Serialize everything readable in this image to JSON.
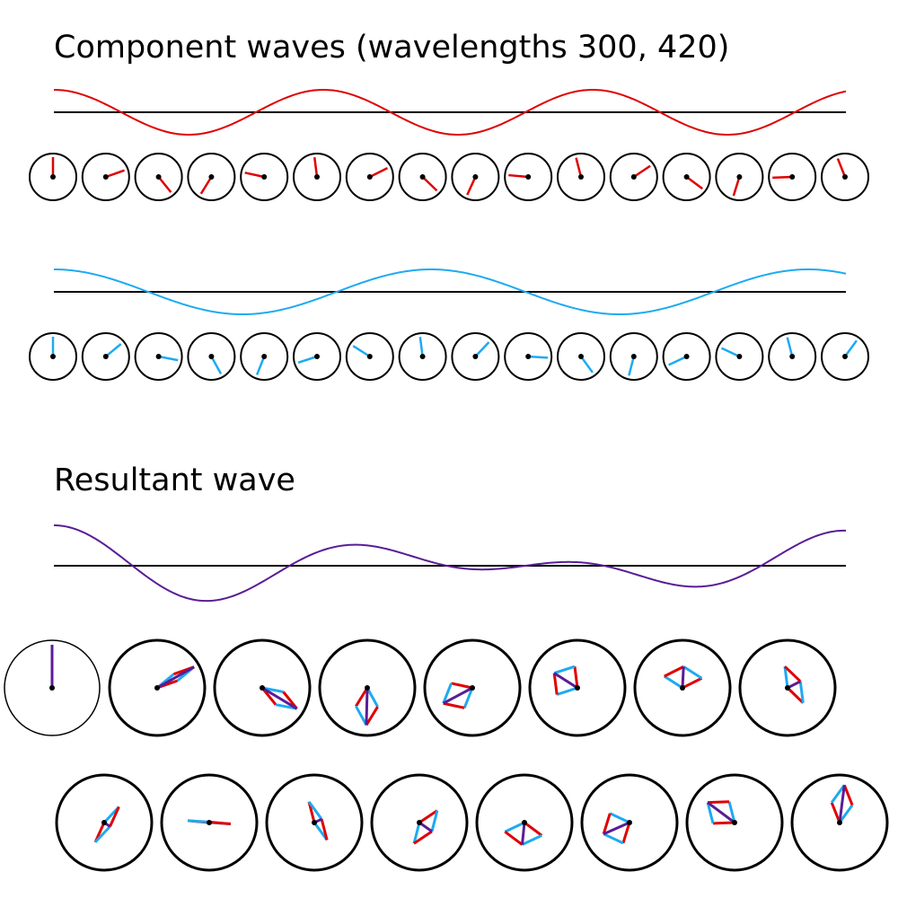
{
  "titles": {
    "components": "Component waves (wavelengths 300, 420)",
    "resultant": "Resultant wave"
  },
  "waves": {
    "component_1": {
      "wavelength": 300,
      "color": "#e00000"
    },
    "component_2": {
      "wavelength": 420,
      "color": "#1eaaf1"
    },
    "resultant": {
      "color": "#5a1c96"
    }
  },
  "colors": {
    "axis": "#000000",
    "circle": "#000000",
    "background": "#ffffff"
  },
  "phasor_rows": {
    "component_1": {
      "count": 16
    },
    "component_2": {
      "count": 16
    },
    "resultant_row_1": {
      "count": 8
    },
    "resultant_row_2": {
      "count": 8
    }
  }
}
